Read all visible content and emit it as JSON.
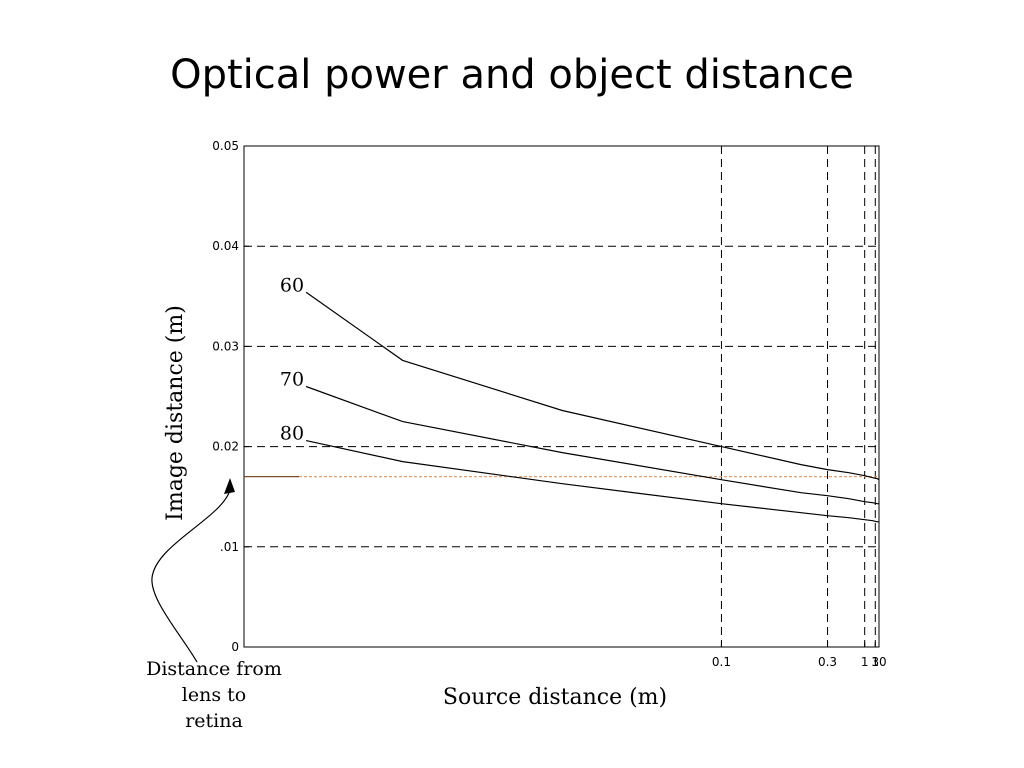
{
  "title": "Optical power and object distance",
  "chart_data": {
    "type": "line",
    "xlabel": "Source distance (m)",
    "ylabel": "Image distance (m)",
    "x_scale": "reciprocal",
    "xlim": [
      0.025,
      10
    ],
    "ylim": [
      0,
      0.05
    ],
    "x_ticks": [
      0.1,
      0.3,
      1,
      3,
      10
    ],
    "x_tick_labels": [
      "0.1",
      "0.3",
      "1",
      "3",
      "10"
    ],
    "y_ticks": [
      0,
      0.01,
      0.02,
      0.03,
      0.04,
      0.05
    ],
    "y_tick_labels": [
      "0",
      ".01",
      "0.02",
      "0.03",
      "0.04",
      "0.05"
    ],
    "grid": true,
    "series": [
      {
        "name": "60",
        "x": [
          0.0277,
          0.0333,
          0.05,
          0.1,
          0.2,
          0.3,
          0.5,
          1,
          2,
          5,
          10
        ],
        "y": [
          0.0354,
          0.0286,
          0.0236,
          0.02,
          0.0182,
          0.0177,
          0.0174,
          0.0171,
          0.0169,
          0.0168,
          0.0167
        ]
      },
      {
        "name": "70",
        "x": [
          0.0277,
          0.0333,
          0.05,
          0.1,
          0.2,
          0.3,
          0.5,
          1,
          2,
          5,
          10
        ],
        "y": [
          0.026,
          0.0225,
          0.0194,
          0.0167,
          0.0154,
          0.0151,
          0.0148,
          0.0145,
          0.0144,
          0.0143,
          0.0143
        ]
      },
      {
        "name": "80",
        "x": [
          0.0277,
          0.0333,
          0.05,
          0.1,
          0.2,
          0.3,
          0.5,
          1,
          2,
          5,
          10
        ],
        "y": [
          0.0206,
          0.0185,
          0.0163,
          0.0143,
          0.0134,
          0.0131,
          0.0129,
          0.0127,
          0.0126,
          0.0125,
          0.0125
        ]
      }
    ],
    "reference_line": {
      "y": 0.017,
      "color": "#e0a070"
    },
    "annotation": {
      "lines": [
        "Distance from",
        "lens to",
        "retina"
      ]
    },
    "colors": {
      "curve": "#000000",
      "grid": "#000000",
      "frame": "#000000"
    }
  }
}
